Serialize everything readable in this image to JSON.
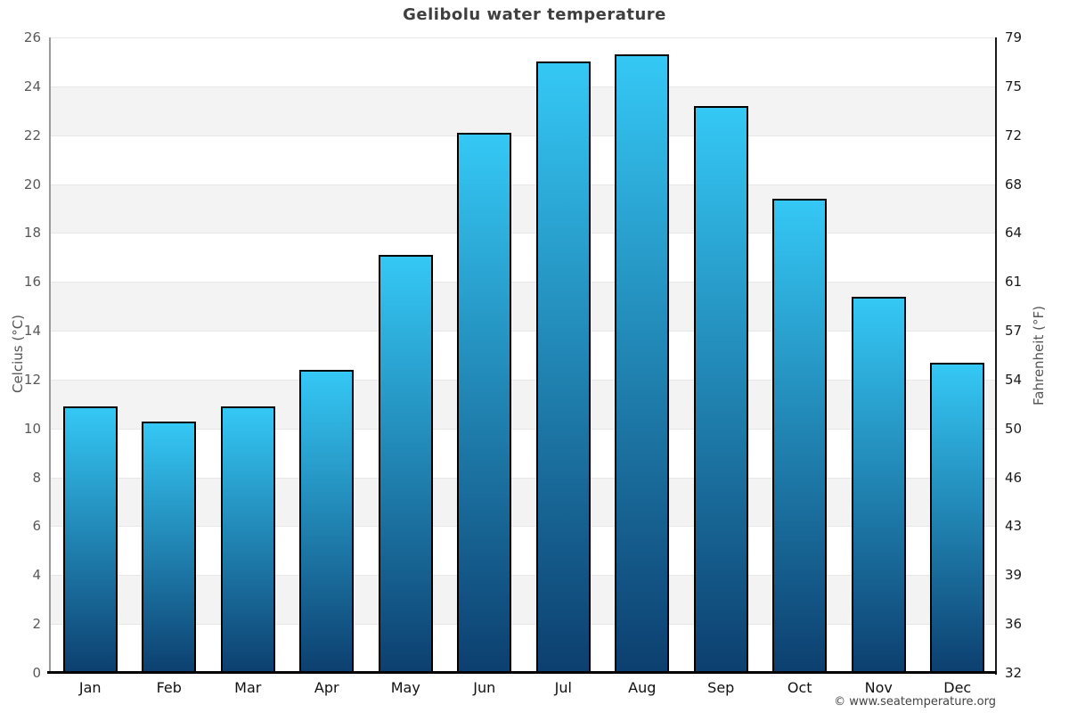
{
  "chart": {
    "title": "Gelibolu water temperature",
    "left_axis_title": "Celcius (°C)",
    "right_axis_title": "Fahrenheit (°F)",
    "copyright": "© www.seatemperature.org"
  },
  "chart_data": {
    "type": "bar",
    "title": "Gelibolu water temperature",
    "categories": [
      "Jan",
      "Feb",
      "Mar",
      "Apr",
      "May",
      "Jun",
      "Jul",
      "Aug",
      "Sep",
      "Oct",
      "Nov",
      "Dec"
    ],
    "values": [
      10.9,
      10.3,
      10.9,
      12.4,
      17.1,
      22.1,
      25.0,
      25.3,
      23.2,
      19.4,
      15.4,
      12.7
    ],
    "xlabel": "",
    "ylabel": "Celcius (°C)",
    "y2label": "Fahrenheit (°F)",
    "ylim": [
      0,
      26
    ],
    "y_ticks_celsius": [
      0,
      2,
      4,
      6,
      8,
      10,
      12,
      14,
      16,
      18,
      20,
      22,
      24,
      26
    ],
    "y2_ticks_fahrenheit": [
      32,
      36,
      39,
      43,
      46,
      50,
      54,
      57,
      61,
      64,
      68,
      72,
      75,
      79
    ],
    "grid": true,
    "legend": "none",
    "colors": {
      "bar_gradient_top": "#35c8f5",
      "bar_gradient_bottom": "#0c3f6f",
      "bar_border": "#000000",
      "band_fill": "#f3f3f3",
      "gridline": "#e7e7e7"
    }
  }
}
